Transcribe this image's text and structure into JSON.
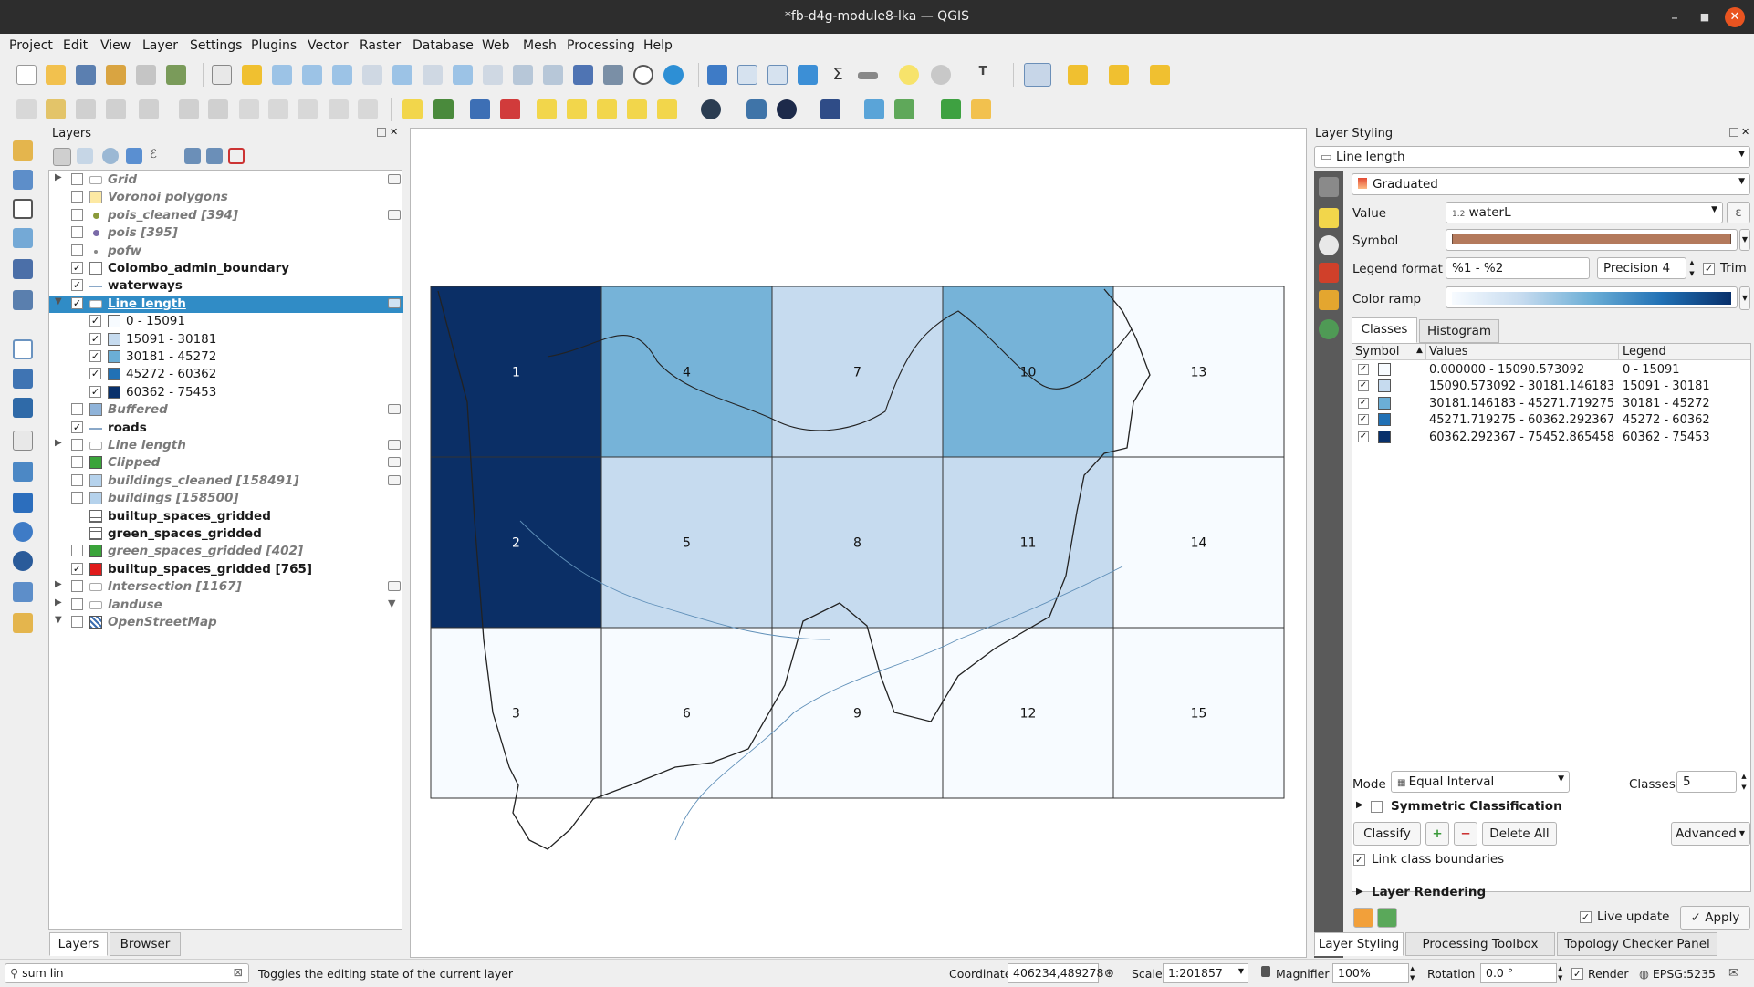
{
  "window": {
    "title": "*fb-d4g-module8-lka — QGIS"
  },
  "menu": [
    "Project",
    "Edit",
    "View",
    "Layer",
    "Settings",
    "Plugins",
    "Vector",
    "Raster",
    "Database",
    "Web",
    "Mesh",
    "Processing",
    "Help"
  ],
  "layers_panel": {
    "title": "Layers",
    "items": [
      {
        "name": "Grid",
        "checked": false,
        "style": "grey",
        "expand": "▶",
        "sym": "poly-none"
      },
      {
        "name": "Voronoi polygons",
        "checked": false,
        "style": "grey",
        "expand": "",
        "sym": "poly-yellow"
      },
      {
        "name": "pois_cleaned [394]",
        "checked": false,
        "style": "grey",
        "expand": "",
        "sym": "point-olive"
      },
      {
        "name": "pois [395]",
        "checked": false,
        "style": "grey",
        "expand": "",
        "sym": "point-purple"
      },
      {
        "name": "pofw",
        "checked": false,
        "style": "grey",
        "expand": "",
        "sym": "point-small"
      },
      {
        "name": "Colombo_admin_boundary",
        "checked": true,
        "style": "bold",
        "expand": "",
        "sym": "poly-white"
      },
      {
        "name": "waterways",
        "checked": true,
        "style": "bold",
        "expand": "",
        "sym": "line"
      },
      {
        "name": "Line length",
        "checked": true,
        "style": "selected",
        "expand": "▼",
        "sym": "poly-none"
      },
      {
        "name": "Buffered",
        "checked": false,
        "style": "grey",
        "expand": "",
        "sym": "poly-blue"
      },
      {
        "name": "roads",
        "checked": true,
        "style": "bold",
        "expand": "",
        "sym": "line"
      },
      {
        "name": "Line length",
        "checked": false,
        "style": "grey",
        "expand": "▶",
        "sym": "poly-none"
      },
      {
        "name": "Clipped",
        "checked": false,
        "style": "grey",
        "expand": "",
        "sym": "poly-green"
      },
      {
        "name": "buildings_cleaned [158491]",
        "checked": false,
        "style": "grey",
        "expand": "",
        "sym": "poly-lightblue"
      },
      {
        "name": "buildings [158500]",
        "checked": false,
        "style": "grey",
        "expand": "",
        "sym": "poly-lightblue"
      },
      {
        "name": "builtup_spaces_gridded",
        "checked": null,
        "style": "bold",
        "expand": "",
        "sym": "table"
      },
      {
        "name": "green_spaces_gridded",
        "checked": null,
        "style": "bold",
        "expand": "",
        "sym": "table"
      },
      {
        "name": "green_spaces_gridded [402]",
        "checked": false,
        "style": "grey",
        "expand": "",
        "sym": "poly-green"
      },
      {
        "name": "builtup_spaces_gridded [765]",
        "checked": true,
        "style": "bold",
        "expand": "",
        "sym": "poly-red"
      },
      {
        "name": "Intersection [1167]",
        "checked": false,
        "style": "grey",
        "expand": "▶",
        "sym": "poly-none"
      },
      {
        "name": "landuse",
        "checked": false,
        "style": "grey",
        "expand": "▶",
        "sym": "poly-none"
      },
      {
        "name": "OpenStreetMap",
        "checked": false,
        "style": "grey",
        "expand": "▼",
        "sym": "raster"
      }
    ],
    "subitems": [
      {
        "label": "0 - 15091",
        "color": "#f7fbff"
      },
      {
        "label": "15091 - 30181",
        "color": "#c6dbef"
      },
      {
        "label": "30181 - 45272",
        "color": "#6baed6"
      },
      {
        "label": "45272 - 60362",
        "color": "#2171b5"
      },
      {
        "label": "60362 - 75453",
        "color": "#08306b"
      }
    ],
    "tabs": [
      "Layers",
      "Browser"
    ]
  },
  "map": {
    "cells": [
      {
        "id": "1",
        "fill": "#0b2f66"
      },
      {
        "id": "4",
        "fill": "#76b3d8"
      },
      {
        "id": "7",
        "fill": "#c6dbef"
      },
      {
        "id": "10",
        "fill": "#76b3d8"
      },
      {
        "id": "13",
        "fill": "#f7fbff"
      },
      {
        "id": "2",
        "fill": "#0b2f66"
      },
      {
        "id": "5",
        "fill": "#c6dbef"
      },
      {
        "id": "8",
        "fill": "#c6dbef"
      },
      {
        "id": "11",
        "fill": "#c6dbef"
      },
      {
        "id": "14",
        "fill": "#f7fbff"
      },
      {
        "id": "3",
        "fill": "#f7fbff"
      },
      {
        "id": "6",
        "fill": "#f7fbff"
      },
      {
        "id": "9",
        "fill": "#f7fbff"
      },
      {
        "id": "12",
        "fill": "#f7fbff"
      },
      {
        "id": "15",
        "fill": "#f7fbff"
      }
    ]
  },
  "styling": {
    "title": "Layer Styling",
    "layer": "Line length",
    "renderer": "Graduated",
    "value_label": "Value",
    "value": "waterL",
    "value_prefix": "1.2",
    "symbol_label": "Symbol",
    "symbol_color": "#b47a5c",
    "legend_format_label": "Legend format",
    "legend_format": "%1 - %2",
    "precision": "Precision 4",
    "trim": "Trim",
    "color_ramp_label": "Color ramp",
    "tabs": [
      "Classes",
      "Histogram"
    ],
    "headers": [
      "Symbol",
      "Values",
      "Legend"
    ],
    "classes": [
      {
        "values": "0.000000 - 15090.573092",
        "legend": "0 - 15091",
        "color": "#f7fbff"
      },
      {
        "values": "15090.573092 - 30181.146183",
        "legend": "15091 - 30181",
        "color": "#c6dbef"
      },
      {
        "values": "30181.146183 - 45271.719275",
        "legend": "30181 - 45272",
        "color": "#6baed6"
      },
      {
        "values": "45271.719275 - 60362.292367",
        "legend": "45272 - 60362",
        "color": "#2171b5"
      },
      {
        "values": "60362.292367 - 75452.865458",
        "legend": "60362 - 75453",
        "color": "#08306b"
      }
    ],
    "mode_label": "Mode",
    "mode": "Equal Interval",
    "classes_label": "Classes",
    "classes_count": "5",
    "symmetric": "Symmetric Classification",
    "classify": "Classify",
    "delete_all": "Delete All",
    "advanced": "Advanced",
    "link_boundaries": "Link class boundaries",
    "layer_rendering": "Layer Rendering",
    "live_update": "Live update",
    "apply": "Apply",
    "bottom_tabs": [
      "Layer Styling",
      "Processing Toolbox",
      "Topology Checker Panel"
    ]
  },
  "status": {
    "search": "sum lin",
    "message": "Toggles the editing state of the current layer",
    "coordinate_label": "Coordinate",
    "coordinate": "406234,489278",
    "scale_label": "Scale",
    "scale": "1:201857",
    "magnifier_label": "Magnifier",
    "magnifier": "100%",
    "rotation_label": "Rotation",
    "rotation": "0.0 °",
    "render": "Render",
    "crs": "EPSG:5235"
  }
}
